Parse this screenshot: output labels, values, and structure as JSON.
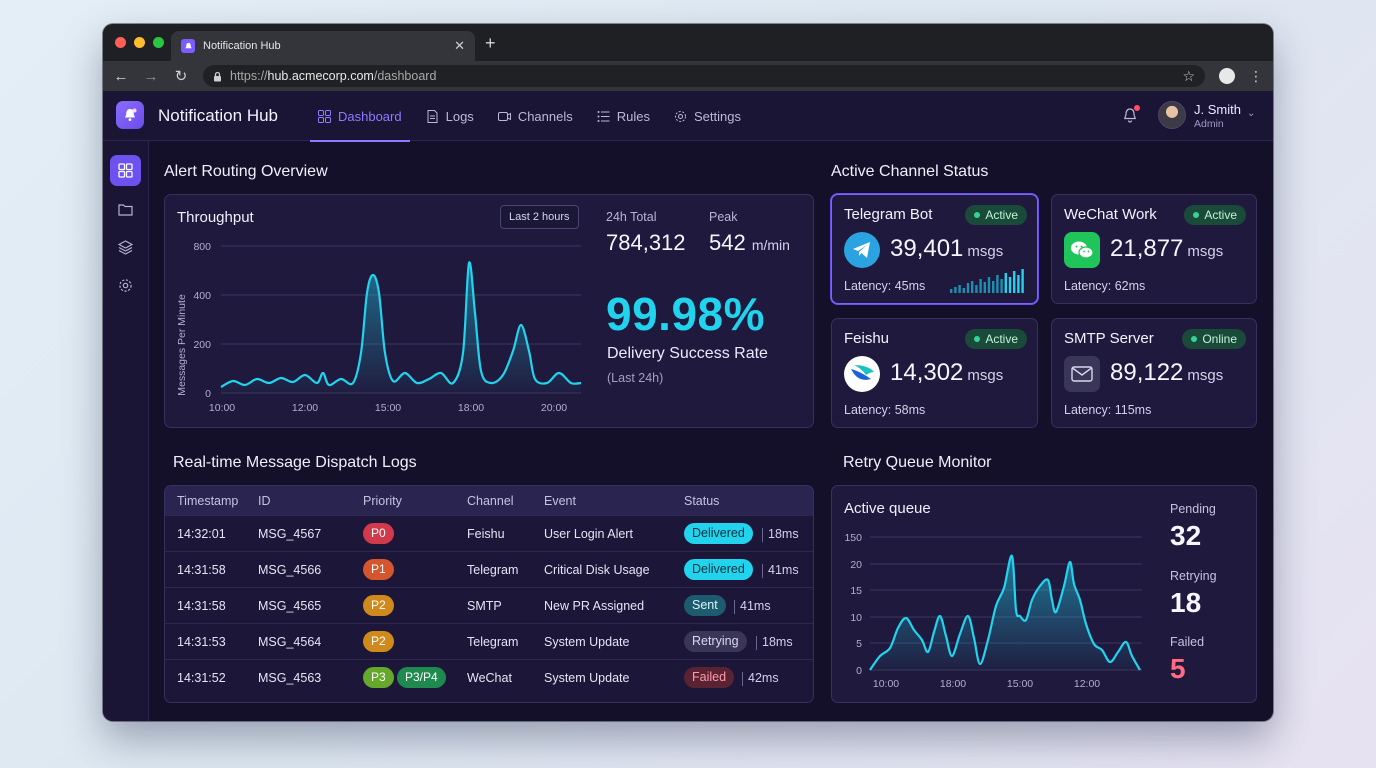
{
  "browser": {
    "tab_title": "Notification Hub",
    "url_scheme": "https://",
    "url_host": "hub.acmecorp.com",
    "url_path": "/dashboard"
  },
  "header": {
    "brand": "Notification Hub",
    "nav": [
      {
        "label": "Dashboard",
        "icon": "grid-icon",
        "active": true
      },
      {
        "label": "Logs",
        "icon": "document-icon"
      },
      {
        "label": "Channels",
        "icon": "video-icon"
      },
      {
        "label": "Rules",
        "icon": "list-icon"
      },
      {
        "label": "Settings",
        "icon": "gear-icon"
      }
    ],
    "user": {
      "name": "J. Smith",
      "role": "Admin"
    }
  },
  "sidebar": {
    "items": [
      "grid-icon",
      "folder-icon",
      "layers-icon",
      "gear-icon"
    ]
  },
  "overview": {
    "title": "Alert Routing Overview",
    "throughput_title": "Throughput",
    "range_button": "Last 2 hours",
    "total_label": "24h Total",
    "total_value": "784,312",
    "peak_label": "Peak",
    "peak_value": "542",
    "peak_unit": "m/min",
    "success_rate": "99.98%",
    "success_label": "Delivery Success Rate",
    "success_sub": "(Last 24h)"
  },
  "channels": {
    "title": "Active Channel Status",
    "items": [
      {
        "name": "Telegram Bot",
        "status": "Active",
        "count": "39,401",
        "unit": "msgs",
        "latency": "Latency: 45ms",
        "color": "#2aa3e0"
      },
      {
        "name": "WeChat Work",
        "status": "Active",
        "count": "21,877",
        "unit": "msgs",
        "latency": "Latency: 62ms",
        "color": "#1fc45a"
      },
      {
        "name": "Feishu",
        "status": "Active",
        "count": "14,302",
        "unit": "msgs",
        "latency": "Latency: 58ms",
        "color": "#ffffff"
      },
      {
        "name": "SMTP Server",
        "status": "Online",
        "count": "89,122",
        "unit": "msgs",
        "latency": "Latency: 115ms",
        "color": "#3a3658"
      }
    ]
  },
  "logs": {
    "title": "Real-time Message Dispatch Logs",
    "columns": [
      "Timestamp",
      "ID",
      "Priority",
      "Channel",
      "Event",
      "Status"
    ],
    "rows": [
      {
        "time": "14:32:01",
        "id": "MSG_4567",
        "priority": [
          "P0"
        ],
        "channel": "Feishu",
        "event": "User Login Alert",
        "status": "Delivered",
        "ms": "18ms"
      },
      {
        "time": "14:31:58",
        "id": "MSG_4566",
        "priority": [
          "P1"
        ],
        "channel": "Telegram",
        "event": "Critical Disk Usage",
        "status": "Delivered",
        "ms": "41ms"
      },
      {
        "time": "14:31:58",
        "id": "MSG_4565",
        "priority": [
          "P2"
        ],
        "channel": "SMTP",
        "event": "New PR Assigned",
        "status": "Sent",
        "ms": "41ms"
      },
      {
        "time": "14:31:53",
        "id": "MSG_4564",
        "priority": [
          "P2"
        ],
        "channel": "Telegram",
        "event": "System Update",
        "status": "Retrying",
        "ms": "18ms"
      },
      {
        "time": "14:31:52",
        "id": "MSG_4563",
        "priority": [
          "P3",
          "P3/P4"
        ],
        "channel": "WeChat",
        "event": "System Update",
        "status": "Failed",
        "ms": "42ms"
      }
    ]
  },
  "retry": {
    "title": "Retry Queue Monitor",
    "chart_title": "Active queue",
    "pending_label": "Pending",
    "pending_value": "32",
    "retrying_label": "Retrying",
    "retrying_value": "18",
    "failed_label": "Failed",
    "failed_value": "5"
  },
  "chart_data": [
    {
      "type": "area",
      "title": "Throughput",
      "ylabel": "Messages Per Minute",
      "ylim": [
        0,
        800
      ],
      "yticks": [
        "800",
        "400",
        "200",
        "0"
      ],
      "xticks": [
        "10:00",
        "12:00",
        "15:00",
        "18:00",
        "20:00"
      ],
      "color": "#22d3ee"
    },
    {
      "type": "area",
      "title": "Active queue",
      "yticks": [
        "150",
        "20",
        "15",
        "10",
        "5",
        "0"
      ],
      "xticks": [
        "10:00",
        "18:00",
        "15:00",
        "12:00"
      ],
      "color": "#22d3ee"
    }
  ]
}
